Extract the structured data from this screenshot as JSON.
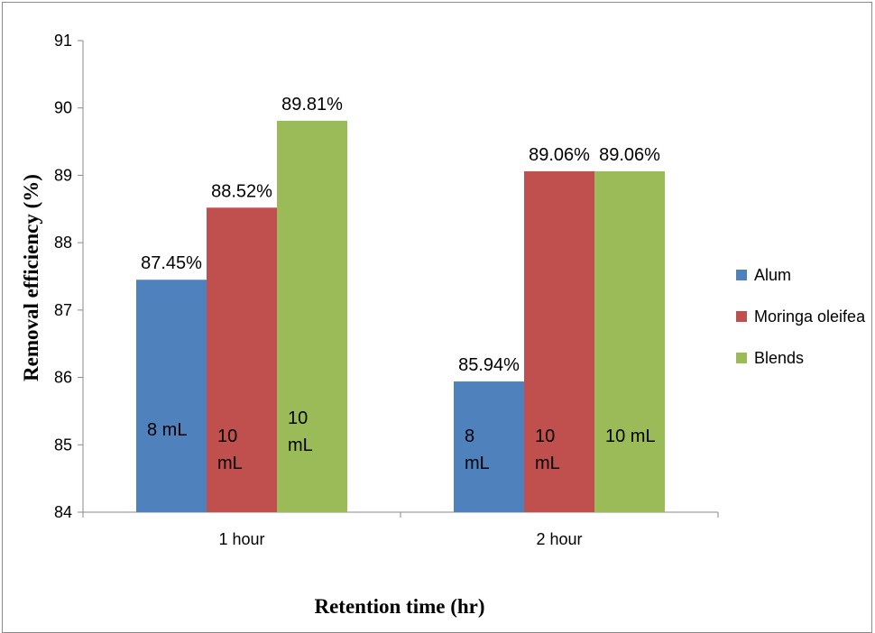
{
  "chart_data": {
    "type": "bar",
    "title": "",
    "xlabel": "Retention time (hr)",
    "ylabel": "Removal efficiency (%)",
    "ylim": [
      84,
      91
    ],
    "yticks": [
      84,
      85,
      86,
      87,
      88,
      89,
      90,
      91
    ],
    "categories": [
      "1 hour",
      "2 hour"
    ],
    "legend_position": "right",
    "grid": false,
    "series": [
      {
        "name": "Alum",
        "color": "#4f81bd",
        "values": [
          87.45,
          85.94
        ],
        "value_labels": [
          "87.45%",
          "85.94%"
        ],
        "dose_labels": [
          [
            "8 mL"
          ],
          [
            "8",
            "mL"
          ]
        ]
      },
      {
        "name": "Moringa oleifea",
        "color": "#c0504d",
        "values": [
          88.52,
          89.06
        ],
        "value_labels": [
          "88.52%",
          "89.06%"
        ],
        "dose_labels": [
          [
            "10",
            "mL"
          ],
          [
            "10",
            "mL"
          ]
        ]
      },
      {
        "name": "Blends",
        "color": "#9bbb59",
        "values": [
          89.81,
          89.06
        ],
        "value_labels": [
          "89.81%",
          "89.06%"
        ],
        "dose_labels": [
          [
            "10",
            "mL"
          ],
          [
            "10 mL"
          ]
        ]
      }
    ]
  }
}
